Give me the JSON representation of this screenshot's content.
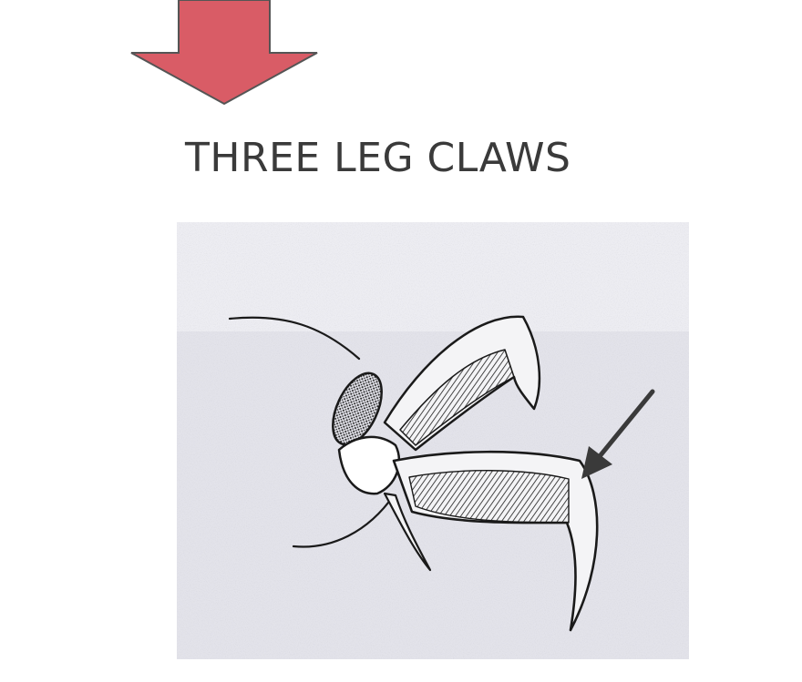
{
  "title": "THREE LEG CLAWS",
  "colors": {
    "arrow_fill": "#d95c66",
    "arrow_outline": "#555555",
    "title_text": "#3a3a3a",
    "figure_background": "#e3e3ea",
    "ink": "#1a1a1a"
  },
  "icons": {
    "top_arrow": "down-arrow-icon",
    "pointer_arrow": "pointer-arrow-icon"
  }
}
